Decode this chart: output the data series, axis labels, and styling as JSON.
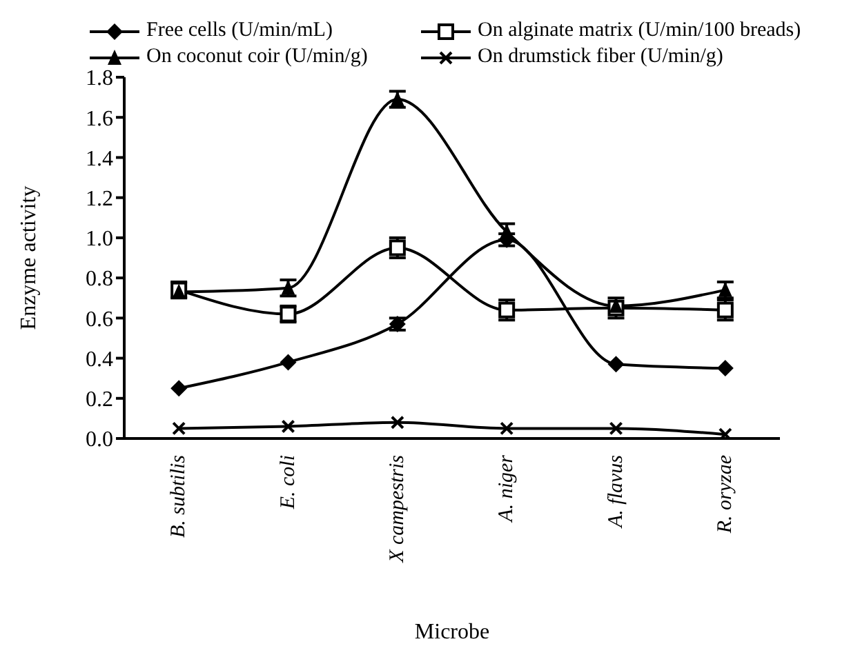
{
  "chart_data": {
    "type": "line",
    "xlabel": "Microbe",
    "ylabel": "Enzyme activity",
    "categories": [
      "B. subtilis",
      "E. coli",
      "X campestris",
      "A. niger",
      "A. flavus",
      "R. oryzae"
    ],
    "series": [
      {
        "name": "Free cells (U/min/mL)",
        "color": "#000000",
        "marker": "diamond",
        "values": [
          0.25,
          0.38,
          0.57,
          0.99,
          0.37,
          0.35
        ],
        "errors": [
          null,
          null,
          0.03,
          0.03,
          null,
          null
        ]
      },
      {
        "name": "On alginate matrix (U/min/100 breads)",
        "color": "#000000",
        "marker": "square",
        "values": [
          0.74,
          0.62,
          0.95,
          0.64,
          0.65,
          0.64
        ],
        "errors": [
          0.04,
          0.04,
          0.05,
          0.05,
          0.05,
          0.05
        ]
      },
      {
        "name": "On coconut coir (U/min/g)",
        "color": "#000000",
        "marker": "triangle",
        "values": [
          0.73,
          0.75,
          1.69,
          1.03,
          0.66,
          0.74
        ],
        "errors": [
          null,
          0.04,
          0.04,
          0.04,
          null,
          0.04
        ]
      },
      {
        "name": "On drumstick fiber (U/min/g)",
        "color": "#000000",
        "marker": "cross",
        "values": [
          0.05,
          0.06,
          0.08,
          0.05,
          0.05,
          0.02
        ]
      }
    ],
    "ylim": [
      0,
      1.8
    ],
    "yticks": [
      {
        "value": 0,
        "label": "0.0"
      },
      0.2,
      0.4,
      0.6,
      0.8,
      {
        "value": 1,
        "label": "1.0"
      },
      1.2,
      1.4,
      1.6,
      1.8
    ],
    "legend": "top"
  }
}
